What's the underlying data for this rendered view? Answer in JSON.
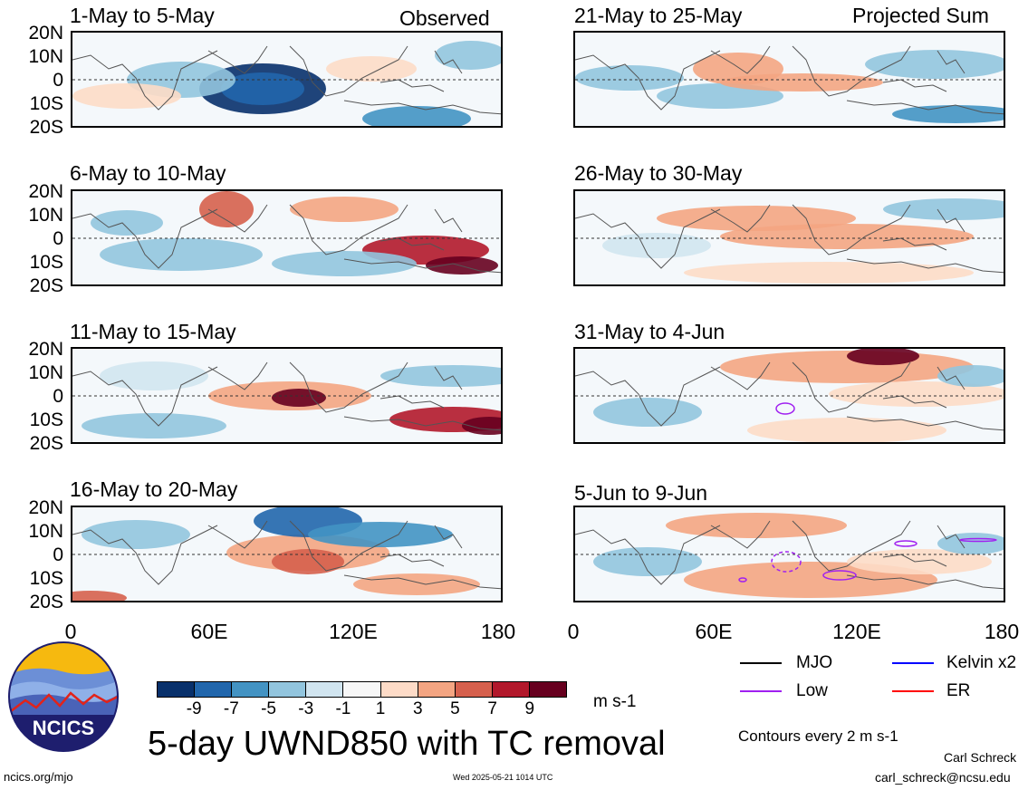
{
  "header": {
    "observed_label": "Observed",
    "projected_label": "Projected Sum"
  },
  "panels_left": [
    {
      "title": "1-May to 5-May"
    },
    {
      "title": "6-May to 10-May"
    },
    {
      "title": "11-May to 15-May"
    },
    {
      "title": "16-May to 20-May"
    }
  ],
  "panels_right": [
    {
      "title": "21-May to 25-May"
    },
    {
      "title": "26-May to 30-May"
    },
    {
      "title": "31-May to 4-Jun"
    },
    {
      "title": "5-Jun to 9-Jun"
    }
  ],
  "lat_labels": [
    "20N",
    "10N",
    "0",
    "10S",
    "20S"
  ],
  "lon_labels": [
    "0",
    "60E",
    "120E",
    "180"
  ],
  "colorbar": {
    "ticks": [
      "-9",
      "-7",
      "-5",
      "-3",
      "-1",
      "1",
      "3",
      "5",
      "7",
      "9"
    ],
    "colors": [
      "#08306b",
      "#2166ac",
      "#4393c3",
      "#92c5de",
      "#d1e5f0",
      "#f7f7f7",
      "#fddbc7",
      "#f4a582",
      "#d6604d",
      "#b2182b",
      "#67001f"
    ],
    "units": "m s-1"
  },
  "title": "5-day UWND850 with TC removal",
  "legend": {
    "items": [
      {
        "label": "MJO",
        "color": "#000000"
      },
      {
        "label": "Kelvin x2",
        "color": "#0000ff"
      },
      {
        "label": "Low",
        "color": "#a020f0"
      },
      {
        "label": "ER",
        "color": "#ff0000"
      }
    ],
    "contour_note": "Contours every 2 m s-1"
  },
  "footer": {
    "site": "ncics.org/mjo",
    "timestamp": "Wed 2025-05-21 1014 UTC",
    "author": "Carl Schreck",
    "email": "carl_schreck@ncsu.edu"
  },
  "logo": {
    "text": "NCICS"
  }
}
